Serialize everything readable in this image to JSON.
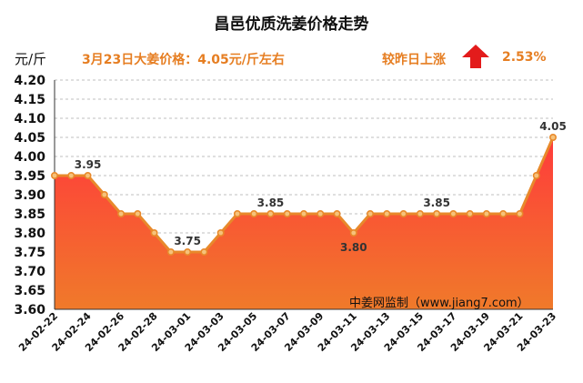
{
  "header": {
    "title": "昌邑优质洗姜价格走势",
    "unit": "元/斤",
    "price_note": "3月23日大姜价格：4.05元/斤左右",
    "change_label": "较昨日上涨",
    "change_pct": "2.53%",
    "arrow_icon": "up-arrow-icon",
    "source": "中姜网监制（www.jiang7.com）"
  },
  "colors": {
    "line": "#E8892B",
    "marker_fill": "#F6C27A",
    "area_top": "#FF3B3B",
    "area_bottom": "#F07A2A",
    "arrow": "#E31B1B",
    "accent_text": "#E67E22"
  },
  "chart_data": {
    "type": "area",
    "title": "昌邑优质洗姜价格走势",
    "ylabel": "元/斤",
    "xlabel": "",
    "ylim": [
      3.6,
      4.2
    ],
    "yticks": [
      "3.60",
      "3.65",
      "3.70",
      "3.75",
      "3.80",
      "3.85",
      "3.90",
      "3.95",
      "4.00",
      "4.05",
      "4.10",
      "4.15",
      "4.20"
    ],
    "x_tick_labels": [
      "24-02-22",
      "24-02-24",
      "24-02-26",
      "24-02-28",
      "24-03-01",
      "24-03-03",
      "24-03-05",
      "24-03-07",
      "24-03-09",
      "24-03-11",
      "24-03-13",
      "24-03-15",
      "24-03-17",
      "24-03-19",
      "24-03-21",
      "24-03-23"
    ],
    "grid": true,
    "series": [
      {
        "values": [
          3.95,
          3.95,
          3.95,
          3.9,
          3.85,
          3.85,
          3.8,
          3.75,
          3.75,
          3.75,
          3.8,
          3.85,
          3.85,
          3.85,
          3.85,
          3.85,
          3.85,
          3.85,
          3.8,
          3.85,
          3.85,
          3.85,
          3.85,
          3.85,
          3.85,
          3.85,
          3.85,
          3.85,
          3.85,
          3.95,
          4.05
        ]
      }
    ],
    "data_labels": [
      {
        "index": 2,
        "text": "3.95"
      },
      {
        "index": 8,
        "text": "3.75"
      },
      {
        "index": 13,
        "text": "3.85"
      },
      {
        "index": 18,
        "text": "3.80"
      },
      {
        "index": 23,
        "text": "3.85"
      },
      {
        "index": 30,
        "text": "4.05"
      }
    ]
  }
}
